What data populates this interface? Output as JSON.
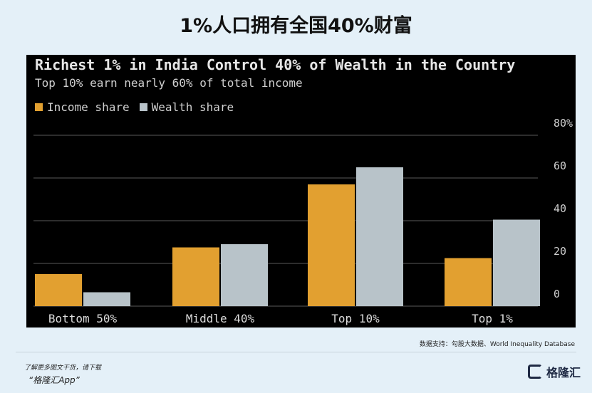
{
  "page": {
    "title": "1%人口拥有全国40%财富",
    "source": "数据支持：勾股大数据、World Inequality Database",
    "footer_line1": "了解更多图文干货，请下载",
    "footer_line2": "“格隆汇App”",
    "logo_text": "格隆汇"
  },
  "colors": {
    "income": "#e2a030",
    "wealth": "#b8c3c9",
    "panel_bg": "#000000",
    "page_bg": "#e4f0f8"
  },
  "chart_data": {
    "type": "bar",
    "title": "Richest 1% in India Control 40% of Wealth in the Country",
    "subtitle": "Top 10% earn nearly 60% of total income",
    "categories": [
      "Bottom 50%",
      "Middle 40%",
      "Top 10%",
      "Top 1%"
    ],
    "series": [
      {
        "name": "Income share",
        "values": [
          15,
          27.5,
          57,
          22.5
        ]
      },
      {
        "name": "Wealth share",
        "values": [
          6.5,
          29,
          65,
          40.5
        ]
      }
    ],
    "yticks": [
      "0",
      "20",
      "40",
      "60",
      "80%"
    ],
    "ytick_values": [
      0,
      20,
      40,
      60,
      80
    ],
    "ylim": [
      0,
      80
    ],
    "grid": true,
    "legend_position": "top-left"
  }
}
